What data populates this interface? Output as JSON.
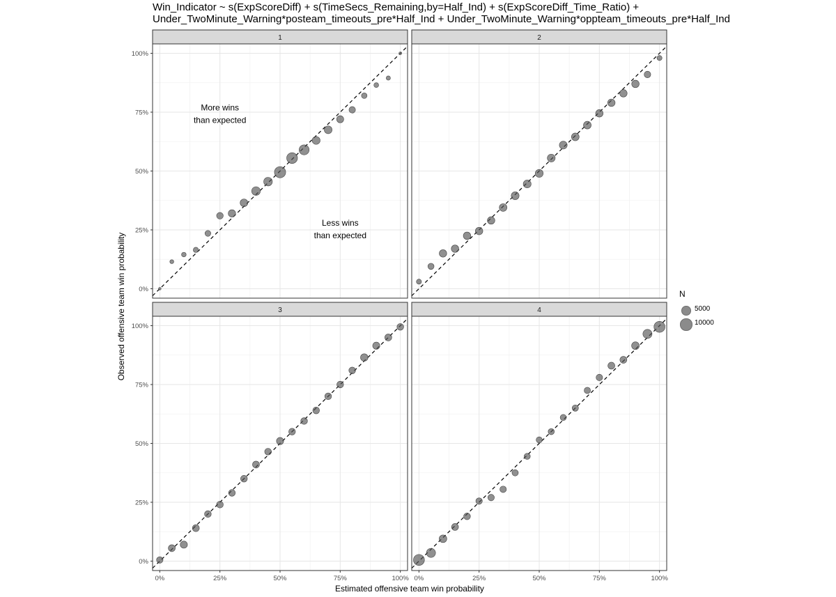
{
  "title": {
    "line1": "Win_Indicator ~ s(ExpScoreDiff) + s(TimeSecs_Remaining,by=Half_Ind) + s(ExpScoreDiff_Time_Ratio) +",
    "line2": "Under_TwoMinute_Warning*posteam_timeouts_pre*Half_Ind + Under_TwoMinute_Warning*oppteam_timeouts_pre*Half_Ind"
  },
  "chart_data": {
    "type": "scatter",
    "xlabel": "Estimated offensive team win probability",
    "ylabel": "Observed offensive team win probability",
    "xlim": [
      -0.03,
      1.03
    ],
    "ylim": [
      -0.04,
      1.04
    ],
    "x_ticks": [
      0,
      0.25,
      0.5,
      0.75,
      1
    ],
    "x_tick_labels": [
      "0%",
      "25%",
      "50%",
      "75%",
      "100%"
    ],
    "y_ticks": [
      0,
      0.25,
      0.5,
      0.75,
      1
    ],
    "y_tick_labels": [
      "0%",
      "25%",
      "50%",
      "75%",
      "100%"
    ],
    "grid": true,
    "reference_line": "y = x (dashed)",
    "point_color": "#555555",
    "point_alpha": 0.65,
    "legend": {
      "title": "N",
      "position": "right",
      "entries": [
        {
          "label": "5000",
          "n": 5000
        },
        {
          "label": "10000",
          "n": 10000
        }
      ]
    },
    "facets": [
      {
        "label": "1",
        "annotations": [
          {
            "text": [
              "More wins",
              "than expected"
            ],
            "x": 0.25,
            "y": 0.74
          },
          {
            "text": [
              "Less wins",
              "than expected"
            ],
            "x": 0.75,
            "y": 0.25
          }
        ],
        "points": [
          {
            "x": 0.0,
            "y": 0.0,
            "n": 150
          },
          {
            "x": 0.05,
            "y": 0.115,
            "n": 700
          },
          {
            "x": 0.1,
            "y": 0.145,
            "n": 1200
          },
          {
            "x": 0.15,
            "y": 0.165,
            "n": 1700
          },
          {
            "x": 0.2,
            "y": 0.235,
            "n": 2300
          },
          {
            "x": 0.25,
            "y": 0.31,
            "n": 3200
          },
          {
            "x": 0.3,
            "y": 0.32,
            "n": 4200
          },
          {
            "x": 0.35,
            "y": 0.365,
            "n": 4600
          },
          {
            "x": 0.4,
            "y": 0.415,
            "n": 6200
          },
          {
            "x": 0.45,
            "y": 0.455,
            "n": 6200
          },
          {
            "x": 0.5,
            "y": 0.495,
            "n": 11500
          },
          {
            "x": 0.55,
            "y": 0.555,
            "n": 10500
          },
          {
            "x": 0.6,
            "y": 0.59,
            "n": 8800
          },
          {
            "x": 0.65,
            "y": 0.63,
            "n": 5000
          },
          {
            "x": 0.7,
            "y": 0.675,
            "n": 4800
          },
          {
            "x": 0.75,
            "y": 0.72,
            "n": 3800
          },
          {
            "x": 0.8,
            "y": 0.76,
            "n": 3000
          },
          {
            "x": 0.85,
            "y": 0.82,
            "n": 2000
          },
          {
            "x": 0.9,
            "y": 0.865,
            "n": 1300
          },
          {
            "x": 0.95,
            "y": 0.895,
            "n": 900
          },
          {
            "x": 1.0,
            "y": 1.0,
            "n": 200
          }
        ]
      },
      {
        "label": "2",
        "points": [
          {
            "x": 0.0,
            "y": 0.03,
            "n": 1500
          },
          {
            "x": 0.05,
            "y": 0.095,
            "n": 2600
          },
          {
            "x": 0.1,
            "y": 0.15,
            "n": 4300
          },
          {
            "x": 0.15,
            "y": 0.17,
            "n": 4300
          },
          {
            "x": 0.2,
            "y": 0.225,
            "n": 4300
          },
          {
            "x": 0.25,
            "y": 0.245,
            "n": 4300
          },
          {
            "x": 0.3,
            "y": 0.29,
            "n": 4300
          },
          {
            "x": 0.35,
            "y": 0.345,
            "n": 4600
          },
          {
            "x": 0.4,
            "y": 0.395,
            "n": 4900
          },
          {
            "x": 0.45,
            "y": 0.445,
            "n": 4900
          },
          {
            "x": 0.5,
            "y": 0.49,
            "n": 5000
          },
          {
            "x": 0.55,
            "y": 0.555,
            "n": 4900
          },
          {
            "x": 0.6,
            "y": 0.61,
            "n": 4900
          },
          {
            "x": 0.65,
            "y": 0.645,
            "n": 4600
          },
          {
            "x": 0.7,
            "y": 0.695,
            "n": 4600
          },
          {
            "x": 0.75,
            "y": 0.745,
            "n": 4300
          },
          {
            "x": 0.8,
            "y": 0.79,
            "n": 4300
          },
          {
            "x": 0.85,
            "y": 0.83,
            "n": 4300
          },
          {
            "x": 0.9,
            "y": 0.87,
            "n": 4300
          },
          {
            "x": 0.95,
            "y": 0.91,
            "n": 3100
          },
          {
            "x": 1.0,
            "y": 0.98,
            "n": 1500
          }
        ]
      },
      {
        "label": "3",
        "points": [
          {
            "x": 0.0,
            "y": 0.005,
            "n": 3000
          },
          {
            "x": 0.05,
            "y": 0.055,
            "n": 3600
          },
          {
            "x": 0.1,
            "y": 0.07,
            "n": 3900
          },
          {
            "x": 0.15,
            "y": 0.14,
            "n": 3600
          },
          {
            "x": 0.2,
            "y": 0.2,
            "n": 3300
          },
          {
            "x": 0.25,
            "y": 0.24,
            "n": 3300
          },
          {
            "x": 0.3,
            "y": 0.29,
            "n": 3300
          },
          {
            "x": 0.35,
            "y": 0.35,
            "n": 3300
          },
          {
            "x": 0.4,
            "y": 0.41,
            "n": 3600
          },
          {
            "x": 0.45,
            "y": 0.465,
            "n": 3300
          },
          {
            "x": 0.5,
            "y": 0.51,
            "n": 3900
          },
          {
            "x": 0.55,
            "y": 0.55,
            "n": 3300
          },
          {
            "x": 0.6,
            "y": 0.595,
            "n": 3300
          },
          {
            "x": 0.65,
            "y": 0.64,
            "n": 3300
          },
          {
            "x": 0.7,
            "y": 0.7,
            "n": 3300
          },
          {
            "x": 0.75,
            "y": 0.75,
            "n": 3300
          },
          {
            "x": 0.8,
            "y": 0.81,
            "n": 3300
          },
          {
            "x": 0.85,
            "y": 0.865,
            "n": 4300
          },
          {
            "x": 0.9,
            "y": 0.915,
            "n": 3900
          },
          {
            "x": 0.95,
            "y": 0.95,
            "n": 3600
          },
          {
            "x": 1.0,
            "y": 0.995,
            "n": 3300
          }
        ]
      },
      {
        "label": "4",
        "points": [
          {
            "x": 0.0,
            "y": 0.005,
            "n": 11000
          },
          {
            "x": 0.05,
            "y": 0.035,
            "n": 7000
          },
          {
            "x": 0.1,
            "y": 0.095,
            "n": 4600
          },
          {
            "x": 0.15,
            "y": 0.145,
            "n": 3600
          },
          {
            "x": 0.2,
            "y": 0.19,
            "n": 3300
          },
          {
            "x": 0.25,
            "y": 0.255,
            "n": 3000
          },
          {
            "x": 0.3,
            "y": 0.27,
            "n": 3000
          },
          {
            "x": 0.35,
            "y": 0.305,
            "n": 3000
          },
          {
            "x": 0.4,
            "y": 0.375,
            "n": 2800
          },
          {
            "x": 0.45,
            "y": 0.445,
            "n": 2600
          },
          {
            "x": 0.5,
            "y": 0.515,
            "n": 2600
          },
          {
            "x": 0.55,
            "y": 0.55,
            "n": 2600
          },
          {
            "x": 0.6,
            "y": 0.61,
            "n": 2600
          },
          {
            "x": 0.65,
            "y": 0.65,
            "n": 2800
          },
          {
            "x": 0.7,
            "y": 0.725,
            "n": 2800
          },
          {
            "x": 0.75,
            "y": 0.78,
            "n": 3000
          },
          {
            "x": 0.8,
            "y": 0.83,
            "n": 3600
          },
          {
            "x": 0.85,
            "y": 0.855,
            "n": 3600
          },
          {
            "x": 0.9,
            "y": 0.915,
            "n": 4600
          },
          {
            "x": 0.95,
            "y": 0.965,
            "n": 7000
          },
          {
            "x": 1.0,
            "y": 0.995,
            "n": 11000
          }
        ]
      }
    ]
  }
}
